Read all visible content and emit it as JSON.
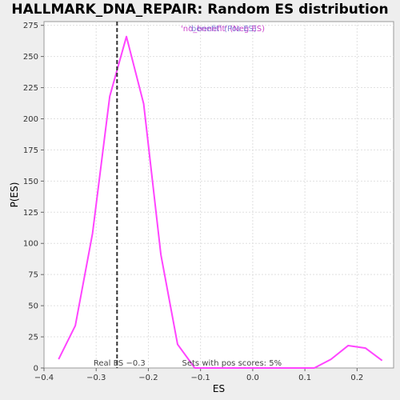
{
  "chart_data": {
    "type": "line",
    "title": "HALLMARK_DNA_REPAIR: Random ES distribution",
    "xlabel": "ES",
    "ylabel": "P(ES)",
    "xlim": [
      -0.4,
      0.27
    ],
    "ylim": [
      0,
      278
    ],
    "x_ticks": [
      -0.4,
      -0.3,
      -0.2,
      -0.1,
      0.0,
      0.1,
      0.2
    ],
    "x_tick_labels": [
      "−0.4",
      "−0.3",
      "−0.2",
      "−0.1",
      "0.0",
      "0.1",
      "0.2"
    ],
    "y_ticks": [
      0,
      25,
      50,
      75,
      100,
      125,
      150,
      175,
      200,
      225,
      250,
      275
    ],
    "y_tick_labels": [
      "0",
      "25",
      "50",
      "75",
      "100",
      "125",
      "150",
      "175",
      "200",
      "225",
      "250",
      "275"
    ],
    "grid": true,
    "legend": {
      "placement": "top-center",
      "entries": [
        {
          "label": "'no_benefit' (Neg ES)",
          "color": "#cc44cc"
        },
        {
          "label": "'benefit' (Pos ES)",
          "color": "#6666cc"
        }
      ]
    },
    "series": [
      {
        "color": "#ff44ff",
        "x": [
          -0.372,
          -0.34,
          -0.307,
          -0.274,
          -0.242,
          -0.209,
          -0.176,
          -0.144,
          -0.111,
          -0.078,
          -0.046,
          -0.013,
          0.02,
          0.052,
          0.085,
          0.118,
          0.15,
          0.183,
          0.216,
          0.248
        ],
        "y": [
          7,
          34,
          108,
          218,
          266,
          212,
          91,
          19,
          0,
          0,
          0,
          0,
          0,
          0,
          0,
          0,
          7,
          18,
          16,
          6
        ]
      }
    ],
    "reference_line": {
      "x": -0.26,
      "label": "Real ES −0.3",
      "style": "dashed",
      "color": "#333333"
    },
    "annotation": "Sets with pos scores: 5%"
  }
}
